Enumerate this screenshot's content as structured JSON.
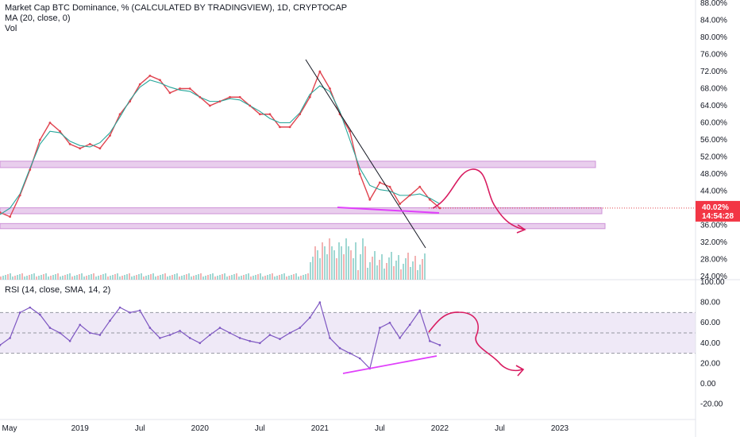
{
  "legend": {
    "title": "Market Cap BTC Dominance, % (CALCULATED BY TRADINGVIEW), 1D, CRYPTOCAP",
    "ma": "MA (20, close, 0)",
    "vol": "Vol"
  },
  "rsi_legend": "RSI (14, close, SMA, 14, 2)",
  "price_badge": {
    "value": "40.02%",
    "countdown": "14:54:28",
    "color": "#f23645"
  },
  "colors": {
    "price_line": "#e0434f",
    "ma_line": "#26a69a",
    "zone_fill": "#ce93d8",
    "trendline": "#131722",
    "support_line": "#e040fb",
    "projection": "#d81b60",
    "rsi_line": "#7e57c2",
    "rsi_band": "#ede7f6"
  },
  "chart_data": [
    {
      "type": "line",
      "title": "Market Cap BTC Dominance, % (CALCULATED BY TRADINGVIEW), 1D, CRYPTOCAP",
      "x_ticks": [
        "May",
        "2019",
        "Jul",
        "2020",
        "Jul",
        "2021",
        "Jul",
        "2022",
        "Jul",
        "2023"
      ],
      "y_ticks": [
        "88.00%",
        "84.00%",
        "80.00%",
        "76.00%",
        "72.00%",
        "68.00%",
        "64.00%",
        "60.00%",
        "56.00%",
        "52.00%",
        "48.00%",
        "44.00%",
        "40.00%",
        "36.00%",
        "32.00%",
        "28.00%",
        "24.00%"
      ],
      "ylim": [
        24,
        88
      ],
      "series": [
        {
          "x": [
            "2018-05",
            "2018-06",
            "2018-07",
            "2018-08",
            "2018-09",
            "2018-10",
            "2018-11",
            "2018-12",
            "2019-01",
            "2019-02",
            "2019-03",
            "2019-04",
            "2019-05",
            "2019-06",
            "2019-07",
            "2019-08",
            "2019-09",
            "2019-10",
            "2019-11",
            "2019-12",
            "2020-01",
            "2020-02",
            "2020-03",
            "2020-04",
            "2020-05",
            "2020-06",
            "2020-07",
            "2020-08",
            "2020-09",
            "2020-10",
            "2020-11",
            "2020-12",
            "2021-01",
            "2021-02",
            "2021-03",
            "2021-04",
            "2021-05",
            "2021-06",
            "2021-07",
            "2021-08",
            "2021-09",
            "2021-10",
            "2021-11",
            "2021-12",
            "2022-01"
          ],
          "values": [
            39,
            38,
            43,
            49,
            56,
            60,
            58,
            55,
            54,
            55,
            54,
            57,
            62,
            65,
            69,
            71,
            70,
            67,
            68,
            68,
            66,
            64,
            65,
            66,
            66,
            64,
            62,
            62,
            59,
            59,
            62,
            66,
            72,
            68,
            62,
            58,
            48,
            42,
            46,
            45,
            41,
            43,
            45,
            42,
            40.02
          ]
        }
      ],
      "zones": [
        [
          49.5,
          51.0
        ],
        [
          38.7,
          40.1
        ],
        [
          35.2,
          36.4
        ]
      ]
    },
    {
      "type": "line",
      "title": "RSI (14, close, SMA, 14, 2)",
      "y_ticks": [
        "100.00",
        "80.00",
        "60.00",
        "40.00",
        "20.00",
        "0.00",
        "-20.00"
      ],
      "ylim": [
        -25,
        100
      ],
      "series": [
        {
          "x": [
            "2018-05",
            "2018-06",
            "2018-07",
            "2018-08",
            "2018-09",
            "2018-10",
            "2018-11",
            "2018-12",
            "2019-01",
            "2019-02",
            "2019-03",
            "2019-04",
            "2019-05",
            "2019-06",
            "2019-07",
            "2019-08",
            "2019-09",
            "2019-10",
            "2019-11",
            "2019-12",
            "2020-01",
            "2020-02",
            "2020-03",
            "2020-04",
            "2020-05",
            "2020-06",
            "2020-07",
            "2020-08",
            "2020-09",
            "2020-10",
            "2020-11",
            "2020-12",
            "2021-01",
            "2021-02",
            "2021-03",
            "2021-04",
            "2021-05",
            "2021-06",
            "2021-07",
            "2021-08",
            "2021-09",
            "2021-10",
            "2021-11",
            "2021-12",
            "2022-01"
          ],
          "values": [
            38,
            45,
            70,
            75,
            68,
            55,
            50,
            42,
            58,
            50,
            48,
            62,
            75,
            70,
            72,
            55,
            45,
            48,
            52,
            45,
            40,
            48,
            55,
            50,
            45,
            42,
            40,
            48,
            44,
            50,
            55,
            65,
            80,
            45,
            35,
            30,
            25,
            15,
            55,
            60,
            45,
            58,
            72,
            42,
            38
          ]
        }
      ],
      "bands": [
        30,
        50,
        70
      ]
    }
  ]
}
